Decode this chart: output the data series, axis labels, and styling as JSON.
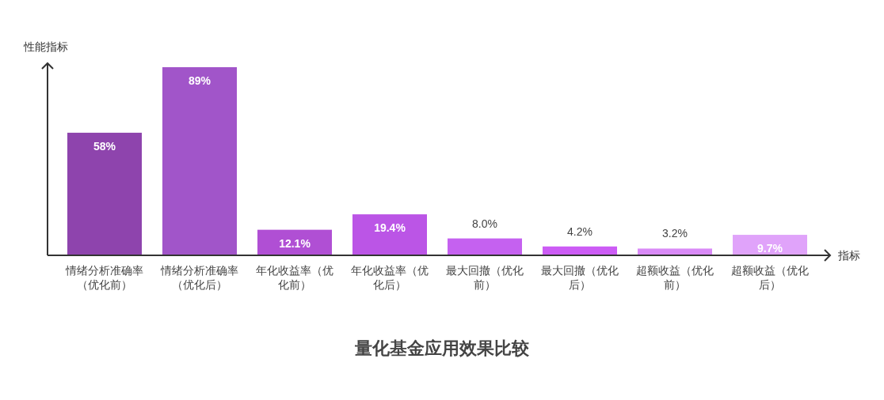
{
  "chart_data": {
    "type": "bar",
    "title": "量化基金应用效果比较",
    "xlabel": "指标",
    "ylabel": "性能指标",
    "categories": [
      "情绪分析准确率（优化前）",
      "情绪分析准确率（优化后）",
      "年化收益率（优化前）",
      "年化收益率（优化后）",
      "最大回撤（优化前）",
      "最大回撤（优化后）",
      "超额收益（优化前）",
      "超额收益（优化后）"
    ],
    "values": [
      58,
      89,
      12.1,
      19.4,
      8.0,
      4.2,
      3.2,
      9.7
    ],
    "value_labels": [
      "58%",
      "89%",
      "12.1%",
      "19.4%",
      "8.0%",
      "4.2%",
      "3.2%",
      "9.7%"
    ],
    "colors": [
      "#8e44ad",
      "#a155c9",
      "#b04fd4",
      "#bb55e6",
      "#c561f0",
      "#cc5cf5",
      "#d98af7",
      "#e0a3fa"
    ]
  }
}
